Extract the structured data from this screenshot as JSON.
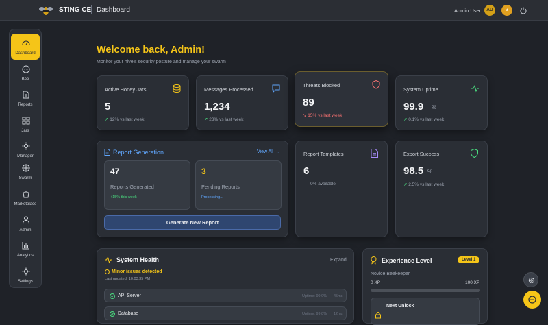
{
  "header": {
    "brand": "STING CE",
    "page": "Dashboard",
    "user": "Admin User",
    "avatar": "AU",
    "notifications": "3"
  },
  "sidebar": {
    "items": [
      "Dashboard",
      "Bee",
      "Reports",
      "Jars",
      "Manager",
      "Swarm",
      "Marketplace",
      "Admin",
      "Analytics",
      "Settings"
    ]
  },
  "welcome": {
    "title": "Welcome back, Admin!",
    "subtitle": "Monitor your hive's security posture and manage your swarm"
  },
  "stats": [
    {
      "label": "Active Honey Jars",
      "value": "5",
      "change": "12% vs last week"
    },
    {
      "label": "Messages Processed",
      "value": "1,234",
      "change": "23% vs last week"
    },
    {
      "label": "Threats Blocked",
      "value": "89",
      "change": "15% vs last week"
    },
    {
      "label": "System Uptime",
      "value": "99.9",
      "unit": "%",
      "change": "0.1% vs last week"
    }
  ],
  "report_generation": {
    "title": "Report Generation",
    "link": "View All →",
    "generated": {
      "value": "47",
      "label": "Reports Generated",
      "note": "+15% this week"
    },
    "pending": {
      "value": "3",
      "label": "Pending Reports",
      "note": "Processing..."
    },
    "button": "Generate New Report"
  },
  "templates": {
    "label": "Report Templates",
    "value": "6",
    "note": "0% available"
  },
  "export": {
    "label": "Export Success",
    "value": "98.5",
    "unit": "%",
    "change": "2.5% vs last week"
  },
  "system_health": {
    "title": "System Health",
    "action": "Expand",
    "status": "Minor issues detected",
    "updated": "Last updated: 10:03:35 PM",
    "services": [
      {
        "name": "API Server",
        "uptime": "Uptime: 99.9%",
        "latency": "45ms"
      },
      {
        "name": "Database",
        "uptime": "Uptime: 99.8%",
        "latency": "12ms"
      }
    ]
  },
  "experience": {
    "title": "Experience Level",
    "badge": "Level 1",
    "rank": "Novice Beekeeper",
    "xp_min": "0 XP",
    "xp_max": "100 XP",
    "next": "Next Unlock"
  }
}
